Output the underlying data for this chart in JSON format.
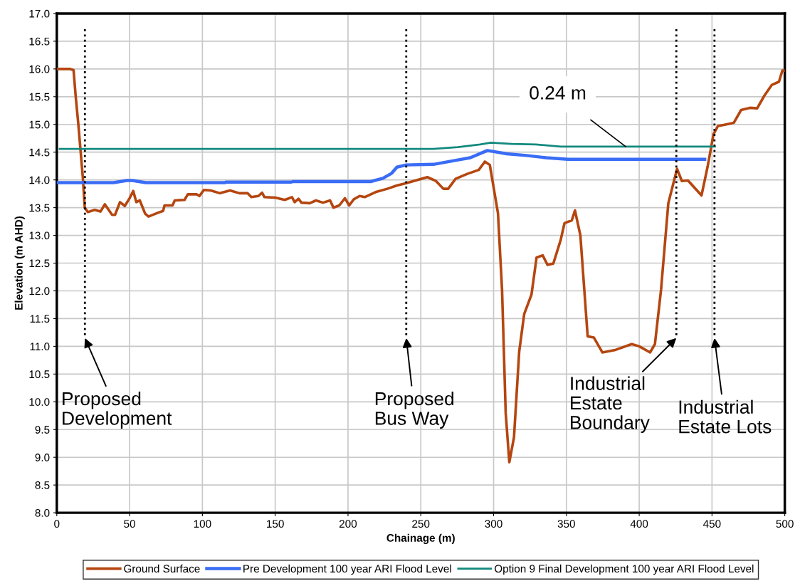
{
  "chart_data": {
    "type": "line",
    "xlabel": "Chainage (m)",
    "ylabel": "Elevation (m AHD)",
    "xlim": [
      0,
      500
    ],
    "xticks": [
      0,
      50,
      100,
      150,
      200,
      250,
      300,
      350,
      400,
      450,
      500
    ],
    "ylim": [
      8.0,
      17.0
    ],
    "yticks": [
      {
        "value": 8,
        "label": "8.0"
      },
      {
        "value": 8.5,
        "label": "8.5"
      },
      {
        "value": 9,
        "label": "9.0"
      },
      {
        "value": 9.5,
        "label": "9.5"
      },
      {
        "value": 10,
        "label": "10.0"
      },
      {
        "value": 10.5,
        "label": "10.5"
      },
      {
        "value": 11,
        "label": "11.0"
      },
      {
        "value": 11.5,
        "label": "11.5"
      },
      {
        "value": 12,
        "label": "12.0"
      },
      {
        "value": 12.5,
        "label": "12.5"
      },
      {
        "value": 13,
        "label": "13.0"
      },
      {
        "value": 13.5,
        "label": "13.5"
      },
      {
        "value": 14,
        "label": "14.0"
      },
      {
        "value": 14.5,
        "label": "14.5"
      },
      {
        "value": 15,
        "label": "15.0"
      },
      {
        "value": 15.5,
        "label": "15.5"
      },
      {
        "value": 16,
        "label": "16.0"
      },
      {
        "value": 16.5,
        "label": "16.5"
      },
      {
        "value": 17,
        "label": "17.0"
      }
    ],
    "grid": true,
    "legend": "bottom",
    "series": [
      {
        "name": "Ground Surface",
        "color": "#b5460f",
        "x": [
          0,
          9,
          11.5,
          13,
          14.8,
          16.4,
          18,
          19.2,
          21.3,
          26,
          30,
          33,
          38,
          40,
          43.4,
          46.7,
          50,
          52.5,
          54.6,
          57,
          60.7,
          63,
          69.7,
          73,
          74,
          79.5,
          81,
          87.7,
          90,
          96,
          98,
          101,
          105.7,
          112,
          119,
          125.4,
          131,
          133.6,
          138.5,
          141,
          142.6,
          150,
          156.6,
          161.5,
          163.4,
          166,
          168,
          173.8,
          178,
          182.8,
          187.7,
          190,
          194,
          197.9,
          200.8,
          204,
          208,
          211.5,
          218.9,
          227,
          233.6,
          240,
          254.5,
          260.4,
          265.5,
          268.8,
          273.9,
          282,
          289.8,
          294,
          297.4,
          303,
          305.8,
          308.3,
          310.8,
          314,
          317.6,
          321,
          326,
          329.5,
          333.7,
          337,
          341,
          346,
          348.7,
          353.7,
          355.9,
          359.6,
          364.6,
          368.8,
          374.7,
          383,
          394.9,
          400,
          407.5,
          410.8,
          415,
          420,
          426,
          429.3,
          433.5,
          442.8,
          447,
          451,
          454,
          458,
          465,
          470,
          476,
          481,
          486,
          491,
          496,
          498.3,
          500
        ],
        "values": [
          16.0,
          16.0,
          15.98,
          15.5,
          15.0,
          14.5,
          14.0,
          13.5,
          13.42,
          13.46,
          13.43,
          13.56,
          13.37,
          13.37,
          13.6,
          13.53,
          13.67,
          13.8,
          13.6,
          13.63,
          13.39,
          13.34,
          13.41,
          13.44,
          13.54,
          13.54,
          13.63,
          13.64,
          13.74,
          13.74,
          13.71,
          13.82,
          13.81,
          13.76,
          13.81,
          13.76,
          13.76,
          13.69,
          13.71,
          13.77,
          13.69,
          13.68,
          13.64,
          13.69,
          13.6,
          13.66,
          13.59,
          13.58,
          13.63,
          13.59,
          13.63,
          13.5,
          13.54,
          13.67,
          13.54,
          13.65,
          13.71,
          13.69,
          13.78,
          13.84,
          13.9,
          13.94,
          14.05,
          13.98,
          13.84,
          13.84,
          14.02,
          14.11,
          14.18,
          14.33,
          14.27,
          13.4,
          12.02,
          9.8,
          8.91,
          9.36,
          10.91,
          11.58,
          11.93,
          12.6,
          12.64,
          12.47,
          12.49,
          12.91,
          13.22,
          13.27,
          13.45,
          13.0,
          11.18,
          11.16,
          10.89,
          10.93,
          11.04,
          11.0,
          10.89,
          11.04,
          12.02,
          13.58,
          14.2,
          13.98,
          13.99,
          13.72,
          14.24,
          14.82,
          14.97,
          14.99,
          15.03,
          15.26,
          15.3,
          15.29,
          15.52,
          15.71,
          15.77,
          15.97,
          15.97
        ]
      },
      {
        "name": "Pre Development 100 year ARI Flood Level",
        "color": "#3a6cf5",
        "x": [
          0,
          39,
          48,
          52,
          61,
          115.6,
          116,
          161,
          162,
          215.6,
          224,
          230,
          233.6,
          240,
          258.7,
          275.5,
          284,
          295.7,
          298,
          309,
          322.6,
          336,
          351,
          445
        ],
        "values": [
          13.95,
          13.95,
          13.99,
          13.99,
          13.95,
          13.95,
          13.96,
          13.96,
          13.97,
          13.97,
          14.03,
          14.12,
          14.23,
          14.27,
          14.28,
          14.36,
          14.4,
          14.53,
          14.52,
          14.47,
          14.44,
          14.4,
          14.37,
          14.37
        ]
      },
      {
        "name": "Option 9 Final Development 100 year ARI Flood Level",
        "color": "#12897e",
        "x": [
          2,
          258.7,
          275.5,
          290.7,
          298,
          312.5,
          329,
          346,
          452
        ],
        "values": [
          14.56,
          14.56,
          14.59,
          14.64,
          14.67,
          14.65,
          14.64,
          14.6,
          14.6
        ]
      }
    ],
    "ref_lines": [
      {
        "axis": "x",
        "value": 19.3,
        "label": "Proposed\nDevelopment",
        "color": "#000000",
        "line_style": "dotted"
      },
      {
        "axis": "x",
        "value": 240,
        "label": "Proposed\nBus Way",
        "color": "#000000",
        "line_style": "dotted"
      },
      {
        "axis": "x",
        "value": 425.5,
        "label": "Industrial\nEstate\nBoundary",
        "color": "#000000",
        "line_style": "dotted"
      },
      {
        "axis": "x",
        "value": 451.7,
        "label": "Industrial\nEstate Lots",
        "color": "#000000",
        "line_style": "dotted"
      }
    ],
    "annotations": [
      {
        "text": "0.24 m",
        "x": 390.7,
        "y": 14.6
      }
    ]
  }
}
